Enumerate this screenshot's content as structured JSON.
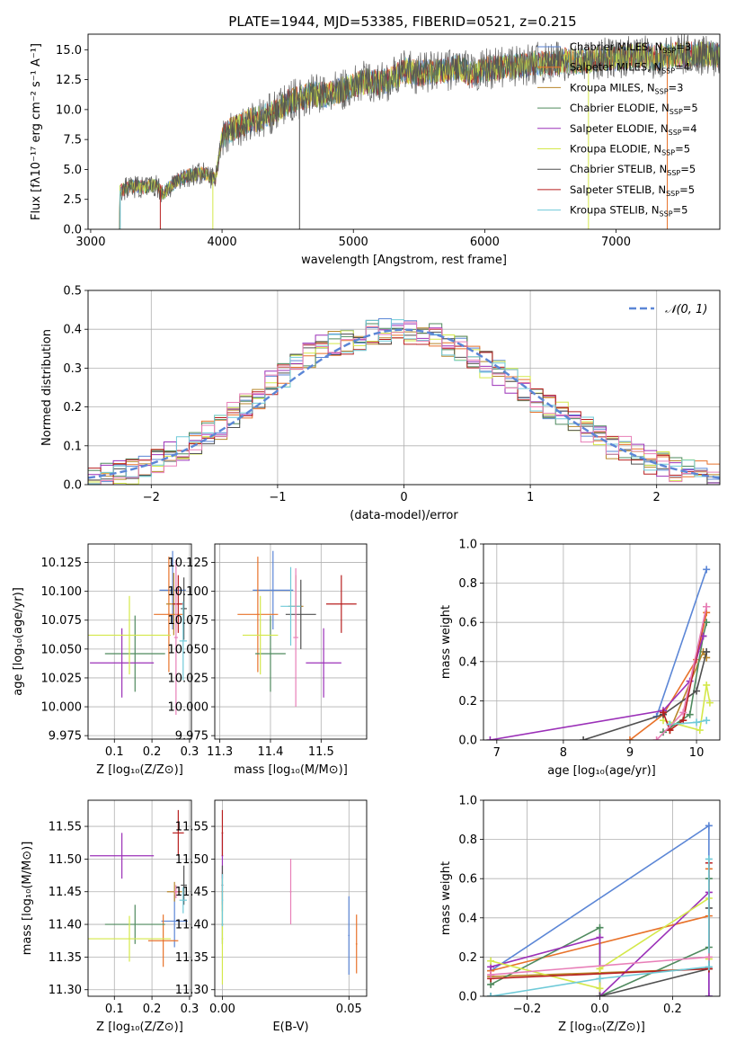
{
  "figure": {
    "title": "PLATE=1944, MJD=53385, FIBERID=0521, z=0.215"
  },
  "colors": {
    "Chabrier MILES": "#5b86d6",
    "Salpeter MILES": "#e8722a",
    "Kroupa MILES": "#b8862b",
    "Chabrier ELODIE": "#4f8a5e",
    "Salpeter ELODIE": "#9b30b8",
    "Kroupa ELODIE": "#d4e84a",
    "Chabrier STELIB": "#505050",
    "Salpeter STELIB": "#b81f1f",
    "Kroupa STELIB": "#6fcad8",
    "pink": "#e87fb8",
    "gauss": "#5b86d6",
    "grid": "#b0b0b0"
  },
  "chart_data": [
    {
      "id": "spectrum",
      "type": "line",
      "xlabel": "wavelength [Angstrom, rest frame]",
      "ylabel": "Flux [fλ10⁻¹⁷ erg cm⁻² s⁻¹ A⁻¹]",
      "xlim": [
        2980,
        7790
      ],
      "ylim": [
        0,
        16.3
      ],
      "xticks": [
        3000,
        4000,
        5000,
        6000,
        7000
      ],
      "yticks": [
        0.0,
        2.5,
        5.0,
        7.5,
        10.0,
        12.5,
        15.0
      ],
      "envelope": {
        "x": [
          3220,
          3300,
          3400,
          3500,
          3550,
          3650,
          3750,
          3850,
          3950,
          4000,
          4100,
          4200,
          4300,
          4400,
          4500,
          4600,
          4700,
          4800,
          4900,
          5000,
          5100,
          5200,
          5300,
          5400,
          5500,
          5600,
          5700,
          5800,
          5900,
          6000,
          6100,
          6200,
          6300,
          6400,
          6500,
          6600,
          6700,
          6800,
          6900,
          7000,
          7100,
          7200,
          7300,
          7400,
          7500,
          7600,
          7700,
          7790
        ],
        "y": [
          3.2,
          3.6,
          3.5,
          3.7,
          3.0,
          4.0,
          4.5,
          4.7,
          4.2,
          7.8,
          8.5,
          9.0,
          9.3,
          9.8,
          10.6,
          11.0,
          11.3,
          11.2,
          11.6,
          12.0,
          12.4,
          12.2,
          12.6,
          13.3,
          13.0,
          13.2,
          13.2,
          13.6,
          12.9,
          13.4,
          13.5,
          13.6,
          13.7,
          13.9,
          13.8,
          14.1,
          14.0,
          14.1,
          14.3,
          14.3,
          14.4,
          14.5,
          14.3,
          14.5,
          14.6,
          14.6,
          14.6,
          14.5
        ]
      },
      "legend": [
        {
          "label": "Chabrier MILES, N",
          "sub": "SSP",
          "n": "=3",
          "color_key": "Chabrier MILES"
        },
        {
          "label": "Salpeter MILES, N",
          "sub": "SSP",
          "n": "=4",
          "color_key": "Salpeter MILES"
        },
        {
          "label": "Kroupa MILES, N",
          "sub": "SSP",
          "n": "=3",
          "color_key": "Kroupa MILES"
        },
        {
          "label": "Chabrier ELODIE, N",
          "sub": "SSP",
          "n": "=5",
          "color_key": "Chabrier ELODIE"
        },
        {
          "label": "Salpeter ELODIE, N",
          "sub": "SSP",
          "n": "=4",
          "color_key": "Salpeter ELODIE"
        },
        {
          "label": "Kroupa ELODIE, N",
          "sub": "SSP",
          "n": "=5",
          "color_key": "Kroupa ELODIE"
        },
        {
          "label": "Chabrier STELIB, N",
          "sub": "SSP",
          "n": "=5",
          "color_key": "Chabrier STELIB"
        },
        {
          "label": "Salpeter STELIB, N",
          "sub": "SSP",
          "n": "=5",
          "color_key": "Salpeter STELIB"
        },
        {
          "label": "Kroupa STELIB, N",
          "sub": "SSP",
          "n": "=5",
          "color_key": "Kroupa STELIB"
        }
      ],
      "legend_position": "right"
    },
    {
      "id": "residuals",
      "type": "histogram",
      "xlabel": "(data-model)/error",
      "ylabel": "Normed distribution",
      "xlim": [
        -2.5,
        2.5
      ],
      "ylim": [
        0,
        0.5
      ],
      "xticks": [
        -2,
        -1,
        0,
        1,
        2
      ],
      "yticks": [
        0.0,
        0.1,
        0.2,
        0.3,
        0.4,
        0.5
      ],
      "bins": [
        -2.5,
        -2.4,
        -2.3,
        -2.2,
        -2.1,
        -2.0,
        -1.9,
        -1.8,
        -1.7,
        -1.6,
        -1.5,
        -1.4,
        -1.3,
        -1.2,
        -1.1,
        -1.0,
        -0.9,
        -0.8,
        -0.7,
        -0.6,
        -0.5,
        -0.4,
        -0.3,
        -0.2,
        -0.1,
        0.0,
        0.1,
        0.2,
        0.3,
        0.4,
        0.5,
        0.6,
        0.7,
        0.8,
        0.9,
        1.0,
        1.1,
        1.2,
        1.3,
        1.4,
        1.5,
        1.6,
        1.7,
        1.8,
        1.9,
        2.0,
        2.1,
        2.2,
        2.3,
        2.4,
        2.5
      ],
      "series_base": [
        0.02,
        0.025,
        0.03,
        0.035,
        0.045,
        0.06,
        0.075,
        0.09,
        0.11,
        0.13,
        0.15,
        0.18,
        0.2,
        0.23,
        0.26,
        0.28,
        0.31,
        0.33,
        0.35,
        0.36,
        0.37,
        0.38,
        0.39,
        0.395,
        0.4,
        0.395,
        0.39,
        0.38,
        0.36,
        0.35,
        0.33,
        0.31,
        0.29,
        0.27,
        0.245,
        0.22,
        0.2,
        0.18,
        0.16,
        0.14,
        0.12,
        0.1,
        0.09,
        0.07,
        0.06,
        0.05,
        0.04,
        0.035,
        0.03,
        0.025
      ],
      "gauss_label": "𝒩(0, 1)",
      "legend_position": "top-right"
    },
    {
      "id": "age-vs-Z",
      "type": "errorbar",
      "xlabel": "Z [log₁₀(Z/Z⊙)]",
      "ylabel": "age  [log₁₀(age/yr)]",
      "xlim": [
        0.03,
        0.305
      ],
      "ylim": [
        9.972,
        10.141
      ],
      "xticks": [
        0.1,
        0.2,
        0.3
      ],
      "yticks": [
        9.975,
        10.0,
        10.025,
        10.05,
        10.075,
        10.1,
        10.125
      ],
      "points": [
        {
          "c": "Chabrier MILES",
          "x": 0.255,
          "y": 10.101,
          "xe": 0.035,
          "ye": 0.034
        },
        {
          "c": "Salpeter MILES",
          "x": 0.245,
          "y": 10.08,
          "xe": 0.04,
          "ye": 0.05
        },
        {
          "c": "Kroupa MILES",
          "x": 0.258,
          "y": 10.089,
          "xe": 0.02,
          "ye": 0.027
        },
        {
          "c": "Chabrier ELODIE",
          "x": 0.155,
          "y": 10.046,
          "xe": 0.08,
          "ye": 0.033
        },
        {
          "c": "Salpeter ELODIE",
          "x": 0.12,
          "y": 10.038,
          "xe": 0.085,
          "ye": 0.03
        },
        {
          "c": "Kroupa ELODIE",
          "x": 0.14,
          "y": 10.062,
          "xe": 0.11,
          "ye": 0.034
        },
        {
          "c": "Chabrier STELIB",
          "x": 0.285,
          "y": 10.085,
          "xe": 0.008,
          "ye": 0.027
        },
        {
          "c": "Salpeter STELIB",
          "x": 0.27,
          "y": 10.089,
          "xe": 0.015,
          "ye": 0.025
        },
        {
          "c": "Kroupa STELIB",
          "x": 0.283,
          "y": 10.057,
          "xe": 0.01,
          "ye": 0.034
        },
        {
          "c": "pink",
          "x": 0.264,
          "y": 10.06,
          "xe": 0.005,
          "ye": 0.067
        }
      ]
    },
    {
      "id": "age-vs-mass",
      "type": "errorbar",
      "xlabel": "mass [log₁₀(M/M⊙)]",
      "ylabel": "",
      "xlim": [
        11.29,
        11.59
      ],
      "ylim": [
        9.972,
        10.141
      ],
      "xticks": [
        11.3,
        11.4,
        11.5
      ],
      "yticks": [
        9.975,
        10.0,
        10.025,
        10.05,
        10.075,
        10.1,
        10.125
      ],
      "points": [
        {
          "c": "Chabrier MILES",
          "x": 11.405,
          "y": 10.101,
          "xe": 0.04,
          "ye": 0.034
        },
        {
          "c": "Salpeter MILES",
          "x": 11.375,
          "y": 10.08,
          "xe": 0.04,
          "ye": 0.05
        },
        {
          "c": "Kroupa MILES",
          "x": 11.45,
          "y": 10.087,
          "xe": 0.015,
          "ye": 0.027
        },
        {
          "c": "Chabrier ELODIE",
          "x": 11.4,
          "y": 10.046,
          "xe": 0.03,
          "ye": 0.033
        },
        {
          "c": "Salpeter ELODIE",
          "x": 11.505,
          "y": 10.038,
          "xe": 0.035,
          "ye": 0.03
        },
        {
          "c": "Kroupa ELODIE",
          "x": 11.38,
          "y": 10.062,
          "xe": 0.035,
          "ye": 0.034
        },
        {
          "c": "Chabrier STELIB",
          "x": 11.46,
          "y": 10.08,
          "xe": 0.03,
          "ye": 0.03
        },
        {
          "c": "Salpeter STELIB",
          "x": 11.54,
          "y": 10.089,
          "xe": 0.03,
          "ye": 0.025
        },
        {
          "c": "Kroupa STELIB",
          "x": 11.44,
          "y": 10.087,
          "xe": 0.02,
          "ye": 0.034
        },
        {
          "c": "pink",
          "x": 11.45,
          "y": 10.06,
          "xe": 0.005,
          "ye": 0.06
        }
      ]
    },
    {
      "id": "weight-vs-age",
      "type": "line",
      "xlabel": "age  [log₁₀(age/yr)]",
      "ylabel": "mass weight",
      "xlim": [
        6.8,
        10.35
      ],
      "ylim": [
        0,
        1.0
      ],
      "xticks": [
        7,
        8,
        9,
        10
      ],
      "yticks": [
        0.0,
        0.2,
        0.4,
        0.6,
        0.8,
        1.0
      ],
      "series": [
        {
          "c": "Chabrier MILES",
          "x": [
            9.4,
            10.15
          ],
          "y": [
            0.12,
            0.87
          ]
        },
        {
          "c": "Salpeter MILES",
          "x": [
            9.0,
            9.5,
            10.0,
            10.15
          ],
          "y": [
            0.0,
            0.13,
            0.41,
            0.65
          ]
        },
        {
          "c": "Kroupa MILES",
          "x": [
            9.6,
            10.1,
            10.15
          ],
          "y": [
            0.05,
            0.45,
            0.42
          ]
        },
        {
          "c": "Chabrier ELODIE",
          "x": [
            9.5,
            9.9,
            10.1,
            10.15
          ],
          "y": [
            0.04,
            0.13,
            0.53,
            0.6
          ]
        },
        {
          "c": "Salpeter ELODIE",
          "x": [
            6.9,
            9.5,
            9.9,
            10.1
          ],
          "y": [
            0.0,
            0.15,
            0.3,
            0.53
          ]
        },
        {
          "c": "Kroupa ELODIE",
          "x": [
            9.5,
            10.05,
            10.15,
            10.2
          ],
          "y": [
            0.1,
            0.05,
            0.28,
            0.19
          ]
        },
        {
          "c": "Chabrier STELIB",
          "x": [
            8.3,
            9.5,
            10.0,
            10.15
          ],
          "y": [
            0.0,
            0.13,
            0.25,
            0.45
          ]
        },
        {
          "c": "Salpeter STELIB",
          "x": [
            9.5,
            9.6,
            9.8,
            10.15
          ],
          "y": [
            0.14,
            0.05,
            0.1,
            0.68
          ]
        },
        {
          "c": "Kroupa STELIB",
          "x": [
            9.6,
            10.0,
            10.15
          ],
          "y": [
            0.08,
            0.09,
            0.1
          ]
        },
        {
          "c": "pink",
          "x": [
            9.4,
            9.8,
            10.15
          ],
          "y": [
            0.0,
            0.14,
            0.68
          ]
        }
      ]
    },
    {
      "id": "mass-vs-Z",
      "type": "errorbar",
      "xlabel": "Z [log₁₀(Z/Z⊙)]",
      "ylabel": "mass [log₁₀(M/M⊙)]",
      "xlim": [
        0.03,
        0.305
      ],
      "ylim": [
        11.29,
        11.59
      ],
      "xticks": [
        0.1,
        0.2,
        0.3
      ],
      "yticks": [
        11.3,
        11.35,
        11.4,
        11.45,
        11.5,
        11.55
      ],
      "points": [
        {
          "c": "Chabrier MILES",
          "x": 0.26,
          "y": 11.405,
          "xe": 0.035,
          "ye": 0.04
        },
        {
          "c": "Salpeter MILES",
          "x": 0.23,
          "y": 11.375,
          "xe": 0.04,
          "ye": 0.04
        },
        {
          "c": "Kroupa MILES",
          "x": 0.26,
          "y": 11.45,
          "xe": 0.02,
          "ye": 0.015
        },
        {
          "c": "Chabrier ELODIE",
          "x": 0.155,
          "y": 11.4,
          "xe": 0.08,
          "ye": 0.03
        },
        {
          "c": "Salpeter ELODIE",
          "x": 0.12,
          "y": 11.505,
          "xe": 0.085,
          "ye": 0.035
        },
        {
          "c": "Kroupa ELODIE",
          "x": 0.14,
          "y": 11.378,
          "xe": 0.11,
          "ye": 0.035
        },
        {
          "c": "Chabrier STELIB",
          "x": 0.285,
          "y": 11.46,
          "xe": 0.008,
          "ye": 0.03
        },
        {
          "c": "Salpeter STELIB",
          "x": 0.27,
          "y": 11.54,
          "xe": 0.015,
          "ye": 0.035
        },
        {
          "c": "Kroupa STELIB",
          "x": 0.283,
          "y": 11.437,
          "xe": 0.01,
          "ye": 0.02
        },
        {
          "c": "pink",
          "x": 0.264,
          "y": 11.45,
          "xe": 0.005,
          "ye": 0.01
        }
      ]
    },
    {
      "id": "mass-vs-ebv",
      "type": "errorbar",
      "xlabel": "E(B-V)",
      "ylabel": "",
      "xlim": [
        -0.003,
        0.057
      ],
      "ylim": [
        11.29,
        11.59
      ],
      "xticks": [
        0.0,
        0.05
      ],
      "yticks": [
        11.3,
        11.35,
        11.4,
        11.45,
        11.5,
        11.55
      ],
      "points": [
        {
          "c": "Chabrier MILES",
          "x": 0.05,
          "y": 11.383,
          "xe": 0.0003,
          "ye": 0.06
        },
        {
          "c": "Salpeter MILES",
          "x": 0.053,
          "y": 11.37,
          "xe": 0.0003,
          "ye": 0.045
        },
        {
          "c": "Kroupa MILES",
          "x": 0.0,
          "y": 11.45,
          "xe": 0.0003,
          "ye": 0.03
        },
        {
          "c": "Chabrier ELODIE",
          "x": 0.0,
          "y": 11.4,
          "xe": 0.0003,
          "ye": 0.03
        },
        {
          "c": "Salpeter ELODIE",
          "x": 0.0,
          "y": 11.505,
          "xe": 0.0003,
          "ye": 0.035
        },
        {
          "c": "Kroupa ELODIE",
          "x": 0.0,
          "y": 11.378,
          "xe": 0.0003,
          "ye": 0.07
        },
        {
          "c": "Chabrier STELIB",
          "x": 0.0,
          "y": 11.46,
          "xe": 0.0003,
          "ye": 0.03
        },
        {
          "c": "Salpeter STELIB",
          "x": 0.0,
          "y": 11.54,
          "xe": 0.0003,
          "ye": 0.035
        },
        {
          "c": "Kroupa STELIB",
          "x": 0.0,
          "y": 11.437,
          "xe": 0.0003,
          "ye": 0.04
        },
        {
          "c": "pink",
          "x": 0.027,
          "y": 11.45,
          "xe": 0.0003,
          "ye": 0.05
        }
      ]
    },
    {
      "id": "weight-vs-Z",
      "type": "line",
      "xlabel": "Z [log₁₀(Z/Z⊙)]",
      "ylabel": "mass weight",
      "xlim": [
        -0.32,
        0.33
      ],
      "ylim": [
        0,
        1.0
      ],
      "xticks": [
        -0.2,
        0.0,
        0.2
      ],
      "yticks": [
        0.0,
        0.2,
        0.4,
        0.6,
        0.8,
        1.0
      ],
      "series": [
        {
          "c": "Chabrier MILES",
          "x": [
            -0.3,
            0.3,
            0.3
          ],
          "y": [
            0.13,
            0.87,
            0.0
          ]
        },
        {
          "c": "Salpeter MILES",
          "x": [
            -0.3,
            0.3,
            0.3
          ],
          "y": [
            0.13,
            0.41,
            0.65
          ]
        },
        {
          "c": "Kroupa MILES",
          "x": [
            -0.3,
            0.3
          ],
          "y": [
            0.1,
            0.14
          ]
        },
        {
          "c": "Chabrier ELODIE",
          "x": [
            -0.3,
            0.0,
            0.0,
            0.3,
            0.3
          ],
          "y": [
            0.06,
            0.35,
            0.0,
            0.25,
            0.6
          ]
        },
        {
          "c": "Salpeter ELODIE",
          "x": [
            -0.3,
            0.0,
            0.0,
            0.3,
            0.3
          ],
          "y": [
            0.15,
            0.3,
            0.0,
            0.53,
            0.0
          ]
        },
        {
          "c": "Kroupa ELODIE",
          "x": [
            -0.3,
            0.0,
            0.0,
            0.3,
            0.3
          ],
          "y": [
            0.18,
            0.04,
            0.14,
            0.5,
            0.19
          ]
        },
        {
          "c": "Chabrier STELIB",
          "x": [
            -0.3,
            0.0,
            0.3,
            0.3
          ],
          "y": [
            0.0,
            0.0,
            0.14,
            0.45
          ]
        },
        {
          "c": "Salpeter STELIB",
          "x": [
            -0.3,
            0.3,
            0.3
          ],
          "y": [
            0.09,
            0.14,
            0.68
          ]
        },
        {
          "c": "Kroupa STELIB",
          "x": [
            -0.3,
            0.0,
            0.3,
            0.3
          ],
          "y": [
            0.0,
            0.09,
            0.15,
            0.7
          ]
        },
        {
          "c": "pink",
          "x": [
            -0.3,
            0.3
          ],
          "y": [
            0.11,
            0.2
          ]
        }
      ]
    }
  ]
}
